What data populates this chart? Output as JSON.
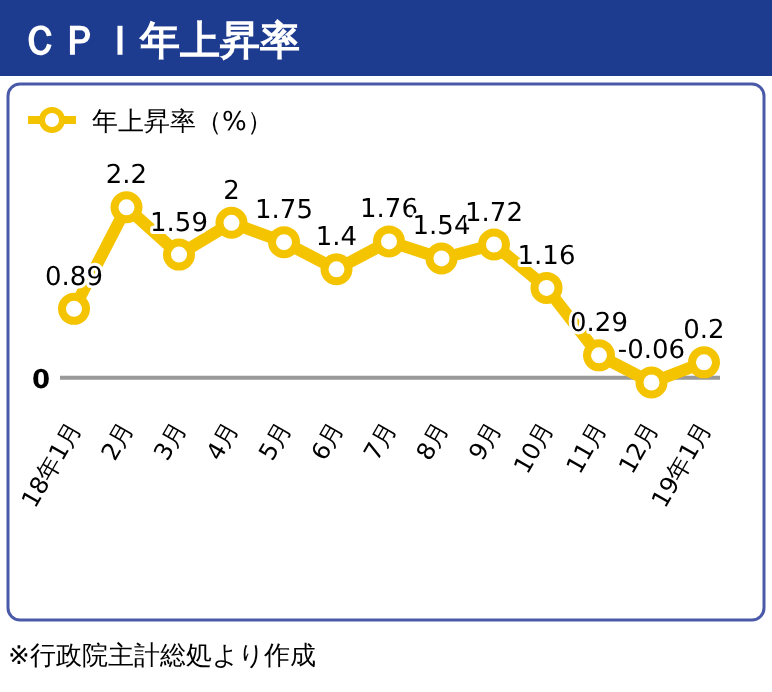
{
  "chart_data": {
    "type": "line",
    "title": "ＣＰＩ年上昇率",
    "categories": [
      "18年1月",
      "2月",
      "3月",
      "4月",
      "5月",
      "6月",
      "7月",
      "8月",
      "9月",
      "10月",
      "11月",
      "12月",
      "19年1月"
    ],
    "series": [
      {
        "name": "年上昇率（%）",
        "color": "#f5c400",
        "values": [
          0.89,
          2.2,
          1.59,
          2,
          1.75,
          1.4,
          1.76,
          1.54,
          1.72,
          1.16,
          0.29,
          -0.06,
          0.2
        ]
      }
    ],
    "legend": "top left",
    "marker": "circle",
    "data_labels": true,
    "annotations": [
      "0",
      "※行政院主計総処より作成"
    ]
  }
}
